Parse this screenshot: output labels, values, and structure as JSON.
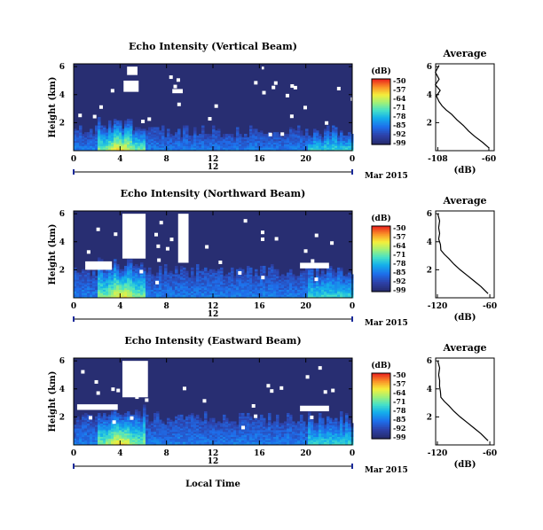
{
  "chart_data": [
    {
      "type": "heatmap",
      "title": "Echo Intensity (Vertical Beam)",
      "ylabel": "Height (km)",
      "x_ticks": [
        "0",
        "4",
        "8",
        "12",
        "16",
        "20",
        "0"
      ],
      "xlim": [
        0,
        24
      ],
      "y_ticks": [
        "6",
        "4",
        "2"
      ],
      "ylim": [
        0,
        6.2
      ],
      "date_label": "12",
      "month_label": "Mar 2015",
      "colorbar": {
        "unit": "(dB)",
        "ticks": [
          "-50",
          "-57",
          "-64",
          "-71",
          "-78",
          "-85",
          "-92",
          "-99"
        ]
      },
      "gaps": [
        {
          "t0": 4.3,
          "t1": 5.6,
          "h0": 4.2,
          "h1": 5.0
        },
        {
          "t0": 4.6,
          "t1": 5.5,
          "h0": 5.4,
          "h1": 6.0
        },
        {
          "t0": 8.5,
          "t1": 9.4,
          "h0": 4.1,
          "h1": 4.4
        },
        {
          "t0": 16.2,
          "t1": 16.4,
          "h0": 5.8,
          "h1": 6.0
        }
      ]
    },
    {
      "type": "line",
      "title": "Average",
      "xlabel": "(dB)",
      "x_ticks": [
        "-108",
        "-60"
      ],
      "xlim": [
        -110,
        -55
      ],
      "y_ticks": [
        "6",
        "4",
        "2"
      ],
      "ylim": [
        0,
        6.2
      ],
      "series": [
        {
          "x": [
            -60,
            -66,
            -73,
            -79,
            -84,
            -90,
            -95,
            -100,
            -104,
            -108,
            -108,
            -107,
            -109,
            -108,
            -109,
            -108
          ],
          "y": [
            0.2,
            0.6,
            1.0,
            1.4,
            1.8,
            2.2,
            2.6,
            2.9,
            3.2,
            3.5,
            3.9,
            4.3,
            4.7,
            5.1,
            5.6,
            6.1
          ]
        }
      ]
    },
    {
      "type": "heatmap",
      "title": "Echo Intensity (Northward Beam)",
      "ylabel": "Height (km)",
      "x_ticks": [
        "0",
        "4",
        "8",
        "12",
        "16",
        "20",
        "0"
      ],
      "xlim": [
        0,
        24
      ],
      "y_ticks": [
        "6",
        "4",
        "2"
      ],
      "ylim": [
        0,
        6.2
      ],
      "date_label": "12",
      "month_label": "Mar 2015",
      "colorbar": {
        "unit": "(dB)",
        "ticks": [
          "-50",
          "-57",
          "-64",
          "-71",
          "-78",
          "-85",
          "-92",
          "-99"
        ]
      },
      "gaps": [
        {
          "t0": 4.2,
          "t1": 6.2,
          "h0": 2.8,
          "h1": 6.0
        },
        {
          "t0": 9.0,
          "t1": 9.9,
          "h0": 2.5,
          "h1": 6.0
        },
        {
          "t0": 1.0,
          "t1": 3.3,
          "h0": 2.0,
          "h1": 2.6
        },
        {
          "t0": 19.5,
          "t1": 22.0,
          "h0": 2.1,
          "h1": 2.5
        }
      ]
    },
    {
      "type": "line",
      "title": "Average",
      "xlabel": "(dB)",
      "x_ticks": [
        "-120",
        "-60"
      ],
      "xlim": [
        -122,
        -55
      ],
      "y_ticks": [
        "6",
        "4",
        "2"
      ],
      "ylim": [
        0,
        6.2
      ],
      "series": [
        {
          "x": [
            -62,
            -70,
            -78,
            -86,
            -94,
            -101,
            -107,
            -112,
            -116,
            -118,
            -117,
            -119,
            -117,
            -119,
            -118
          ],
          "y": [
            0.3,
            0.8,
            1.2,
            1.6,
            2.0,
            2.4,
            2.8,
            3.1,
            3.4,
            3.8,
            4.2,
            4.6,
            5.0,
            5.5,
            6.0
          ]
        }
      ]
    },
    {
      "type": "heatmap",
      "title": "Echo Intensity (Eastward Beam)",
      "ylabel": "Height (km)",
      "x_ticks": [
        "0",
        "4",
        "8",
        "12",
        "16",
        "20",
        "0"
      ],
      "xlim": [
        0,
        24
      ],
      "y_ticks": [
        "6",
        "4",
        "2"
      ],
      "ylim": [
        0,
        6.2
      ],
      "date_label": "12",
      "month_label": "Mar 2015",
      "xlabel": "Local Time",
      "colorbar": {
        "unit": "(dB)",
        "ticks": [
          "-50",
          "-57",
          "-64",
          "-71",
          "-78",
          "-85",
          "-92",
          "-99"
        ]
      },
      "gaps": [
        {
          "t0": 4.2,
          "t1": 6.4,
          "h0": 3.4,
          "h1": 6.0
        },
        {
          "t0": 0.3,
          "t1": 3.8,
          "h0": 2.5,
          "h1": 2.9
        },
        {
          "t0": 19.5,
          "t1": 22.0,
          "h0": 2.4,
          "h1": 2.8
        }
      ]
    },
    {
      "type": "line",
      "title": "Average",
      "xlabel": "(dB)",
      "x_ticks": [
        "-120",
        "-60"
      ],
      "xlim": [
        -122,
        -55
      ],
      "y_ticks": [
        "6",
        "4",
        "2"
      ],
      "ylim": [
        0,
        6.2
      ],
      "series": [
        {
          "x": [
            -62,
            -70,
            -78,
            -86,
            -94,
            -101,
            -107,
            -112,
            -116,
            -118,
            -116,
            -119,
            -117,
            -119,
            -118
          ],
          "y": [
            0.3,
            0.8,
            1.2,
            1.6,
            2.0,
            2.4,
            2.8,
            3.1,
            3.4,
            3.8,
            4.2,
            4.6,
            5.0,
            5.5,
            6.0
          ]
        }
      ]
    }
  ]
}
